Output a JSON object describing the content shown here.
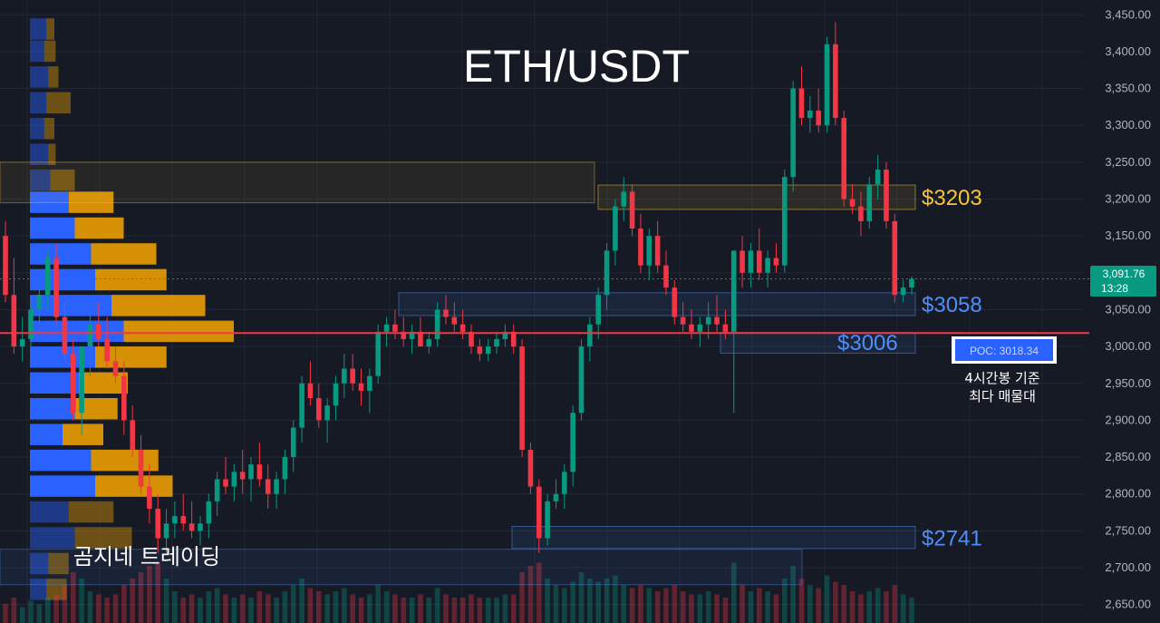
{
  "chart_data": {
    "type": "candlestick",
    "title": "ETH/USDT",
    "watermark": "곰지네 트레이딩",
    "ylim": [
      2625,
      3470
    ],
    "y_ticks": [
      "3,450.00",
      "3,400.00",
      "3,350.00",
      "3,300.00",
      "3,250.00",
      "3,200.00",
      "3,150.00",
      "3,100.00",
      "3,050.00",
      "3,000.00",
      "2,950.00",
      "2,900.00",
      "2,850.00",
      "2,800.00",
      "2,750.00",
      "2,700.00",
      "2,650.00"
    ],
    "y_tick_values": [
      3450,
      3400,
      3350,
      3300,
      3250,
      3200,
      3150,
      3100,
      3050,
      3000,
      2950,
      2900,
      2850,
      2800,
      2750,
      2700,
      2650
    ],
    "current_price": {
      "value": 3091.76,
      "label": "3,091.76",
      "countdown": "13:28",
      "color": "#089981"
    },
    "poc": {
      "value": 3018.34,
      "label": "POC: 3018.34",
      "note_line1": "4시간봉 기준",
      "note_line2": "최다 매물대",
      "color": "#f23645"
    },
    "levels": [
      {
        "value": 3203,
        "label": "$3203",
        "color": "#f5c542",
        "zone": [
          3186,
          3219
        ]
      },
      {
        "value": 3058,
        "label": "$3058",
        "color": "#4f8ef7",
        "zone": [
          3042,
          3073
        ]
      },
      {
        "value": 3006,
        "label": "$3006",
        "color": "#4f8ef7",
        "zone": [
          2991,
          3019
        ]
      },
      {
        "value": 2741,
        "label": "$2741",
        "color": "#4f8ef7",
        "zone": [
          2726,
          2756
        ]
      }
    ],
    "candles": [
      [
        3150,
        3170,
        3060,
        3070
      ],
      [
        3070,
        3120,
        2990,
        3000
      ],
      [
        3000,
        3040,
        2980,
        3010
      ],
      [
        3010,
        3060,
        3000,
        3050
      ],
      [
        3050,
        3090,
        3030,
        3070
      ],
      [
        3070,
        3130,
        3050,
        3120
      ],
      [
        3120,
        3140,
        3030,
        3040
      ],
      [
        3040,
        3060,
        2980,
        2990
      ],
      [
        2990,
        3010,
        2900,
        2910
      ],
      [
        2910,
        3000,
        2880,
        3000
      ],
      [
        3000,
        3050,
        2960,
        3030
      ],
      [
        3030,
        3060,
        3000,
        3010
      ],
      [
        3010,
        3040,
        2970,
        2980
      ],
      [
        2980,
        3000,
        2950,
        2960
      ],
      [
        2960,
        2980,
        2880,
        2900
      ],
      [
        2900,
        2920,
        2850,
        2860
      ],
      [
        2860,
        2880,
        2800,
        2810
      ],
      [
        2810,
        2840,
        2760,
        2780
      ],
      [
        2780,
        2800,
        2720,
        2740
      ],
      [
        2740,
        2780,
        2720,
        2760
      ],
      [
        2760,
        2790,
        2740,
        2770
      ],
      [
        2770,
        2800,
        2750,
        2760
      ],
      [
        2760,
        2790,
        2740,
        2750
      ],
      [
        2750,
        2770,
        2730,
        2760
      ],
      [
        2760,
        2800,
        2740,
        2790
      ],
      [
        2790,
        2830,
        2770,
        2820
      ],
      [
        2820,
        2850,
        2800,
        2810
      ],
      [
        2810,
        2840,
        2790,
        2830
      ],
      [
        2830,
        2860,
        2800,
        2820
      ],
      [
        2820,
        2850,
        2790,
        2840
      ],
      [
        2840,
        2870,
        2810,
        2820
      ],
      [
        2820,
        2840,
        2780,
        2800
      ],
      [
        2800,
        2830,
        2780,
        2820
      ],
      [
        2820,
        2860,
        2800,
        2850
      ],
      [
        2850,
        2900,
        2830,
        2890
      ],
      [
        2890,
        2960,
        2870,
        2950
      ],
      [
        2950,
        2980,
        2920,
        2930
      ],
      [
        2930,
        2950,
        2890,
        2900
      ],
      [
        2900,
        2930,
        2870,
        2920
      ],
      [
        2920,
        2960,
        2900,
        2950
      ],
      [
        2950,
        2990,
        2930,
        2970
      ],
      [
        2970,
        2990,
        2940,
        2950
      ],
      [
        2950,
        2970,
        2920,
        2940
      ],
      [
        2940,
        2970,
        2910,
        2960
      ],
      [
        2960,
        3030,
        2950,
        3020
      ],
      [
        3020,
        3040,
        3000,
        3030
      ],
      [
        3030,
        3050,
        3010,
        3020
      ],
      [
        3020,
        3040,
        3000,
        3010
      ],
      [
        3010,
        3030,
        2990,
        3020
      ],
      [
        3020,
        3040,
        3000,
        3000
      ],
      [
        3000,
        3020,
        2990,
        3010
      ],
      [
        3010,
        3060,
        3000,
        3050
      ],
      [
        3050,
        3070,
        3030,
        3040
      ],
      [
        3040,
        3060,
        3020,
        3030
      ],
      [
        3030,
        3050,
        3010,
        3020
      ],
      [
        3020,
        3030,
        2990,
        3000
      ],
      [
        3000,
        3010,
        2980,
        2990
      ],
      [
        2990,
        3010,
        2980,
        3000
      ],
      [
        3000,
        3020,
        2990,
        3010
      ],
      [
        3010,
        3030,
        3000,
        3020
      ],
      [
        3020,
        3030,
        2990,
        3000
      ],
      [
        3000,
        3010,
        2850,
        2860
      ],
      [
        2860,
        2870,
        2800,
        2810
      ],
      [
        2810,
        2820,
        2720,
        2740
      ],
      [
        2740,
        2800,
        2730,
        2790
      ],
      [
        2790,
        2820,
        2780,
        2800
      ],
      [
        2800,
        2840,
        2780,
        2830
      ],
      [
        2830,
        2920,
        2810,
        2910
      ],
      [
        2910,
        3010,
        2900,
        3000
      ],
      [
        3000,
        3040,
        2980,
        3030
      ],
      [
        3030,
        3080,
        3010,
        3070
      ],
      [
        3070,
        3140,
        3050,
        3130
      ],
      [
        3130,
        3200,
        3110,
        3190
      ],
      [
        3190,
        3230,
        3170,
        3210
      ],
      [
        3210,
        3220,
        3150,
        3160
      ],
      [
        3160,
        3180,
        3100,
        3110
      ],
      [
        3110,
        3160,
        3090,
        3150
      ],
      [
        3150,
        3170,
        3100,
        3110
      ],
      [
        3110,
        3130,
        3070,
        3080
      ],
      [
        3080,
        3090,
        3030,
        3040
      ],
      [
        3040,
        3060,
        3020,
        3030
      ],
      [
        3030,
        3050,
        3010,
        3020
      ],
      [
        3020,
        3040,
        3000,
        3030
      ],
      [
        3030,
        3060,
        3010,
        3040
      ],
      [
        3040,
        3070,
        3020,
        3030
      ],
      [
        3030,
        3050,
        3010,
        3020
      ],
      [
        3020,
        3130,
        2910,
        3130
      ],
      [
        3130,
        3150,
        3080,
        3100
      ],
      [
        3100,
        3140,
        3080,
        3130
      ],
      [
        3130,
        3160,
        3090,
        3100
      ],
      [
        3100,
        3130,
        3080,
        3120
      ],
      [
        3120,
        3140,
        3100,
        3110
      ],
      [
        3110,
        3240,
        3100,
        3230
      ],
      [
        3230,
        3360,
        3210,
        3350
      ],
      [
        3350,
        3380,
        3300,
        3310
      ],
      [
        3310,
        3340,
        3290,
        3320
      ],
      [
        3320,
        3350,
        3290,
        3300
      ],
      [
        3300,
        3420,
        3290,
        3410
      ],
      [
        3410,
        3440,
        3300,
        3310
      ],
      [
        3310,
        3320,
        3190,
        3200
      ],
      [
        3200,
        3220,
        3180,
        3190
      ],
      [
        3190,
        3210,
        3150,
        3170
      ],
      [
        3170,
        3230,
        3160,
        3220
      ],
      [
        3220,
        3260,
        3200,
        3240
      ],
      [
        3240,
        3250,
        3160,
        3170
      ],
      [
        3170,
        3180,
        3060,
        3070
      ],
      [
        3070,
        3090,
        3060,
        3080
      ],
      [
        3080,
        3095,
        3070,
        3091.76
      ]
    ],
    "volume_profile": [
      {
        "price": 3430,
        "buy": 40,
        "sell": 20
      },
      {
        "price": 3400,
        "buy": 35,
        "sell": 28
      },
      {
        "price": 3365,
        "buy": 45,
        "sell": 25
      },
      {
        "price": 3330,
        "buy": 40,
        "sell": 60
      },
      {
        "price": 3295,
        "buy": 35,
        "sell": 25
      },
      {
        "price": 3260,
        "buy": 45,
        "sell": 18
      },
      {
        "price": 3225,
        "buy": 50,
        "sell": 60
      },
      {
        "price": 3195,
        "buy": 95,
        "sell": 110
      },
      {
        "price": 3160,
        "buy": 110,
        "sell": 120
      },
      {
        "price": 3125,
        "buy": 150,
        "sell": 160
      },
      {
        "price": 3090,
        "buy": 160,
        "sell": 175
      },
      {
        "price": 3055,
        "buy": 200,
        "sell": 230
      },
      {
        "price": 3020,
        "buy": 230,
        "sell": 270
      },
      {
        "price": 2985,
        "buy": 160,
        "sell": 175
      },
      {
        "price": 2950,
        "buy": 120,
        "sell": 120
      },
      {
        "price": 2915,
        "buy": 110,
        "sell": 105
      },
      {
        "price": 2880,
        "buy": 80,
        "sell": 100
      },
      {
        "price": 2845,
        "buy": 150,
        "sell": 165
      },
      {
        "price": 2810,
        "buy": 160,
        "sell": 190
      },
      {
        "price": 2775,
        "buy": 95,
        "sell": 110
      },
      {
        "price": 2740,
        "buy": 110,
        "sell": 140
      },
      {
        "price": 2705,
        "buy": 45,
        "sell": 50
      },
      {
        "price": 2670,
        "buy": 40,
        "sell": 50
      }
    ],
    "volumes": [
      30,
      40,
      25,
      35,
      30,
      40,
      45,
      60,
      80,
      70,
      50,
      45,
      40,
      45,
      60,
      70,
      80,
      90,
      95,
      70,
      50,
      40,
      45,
      40,
      50,
      55,
      45,
      40,
      45,
      40,
      50,
      45,
      40,
      50,
      60,
      70,
      55,
      50,
      45,
      50,
      55,
      45,
      40,
      45,
      60,
      50,
      45,
      40,
      40,
      45,
      40,
      55,
      45,
      40,
      40,
      45,
      40,
      40,
      40,
      45,
      45,
      80,
      90,
      95,
      70,
      60,
      55,
      65,
      80,
      70,
      65,
      70,
      75,
      60,
      55,
      60,
      55,
      50,
      55,
      60,
      50,
      45,
      45,
      50,
      45,
      40,
      95,
      60,
      50,
      55,
      50,
      45,
      70,
      90,
      70,
      60,
      55,
      75,
      65,
      60,
      50,
      45,
      50,
      55,
      50,
      60,
      45,
      40
    ]
  }
}
